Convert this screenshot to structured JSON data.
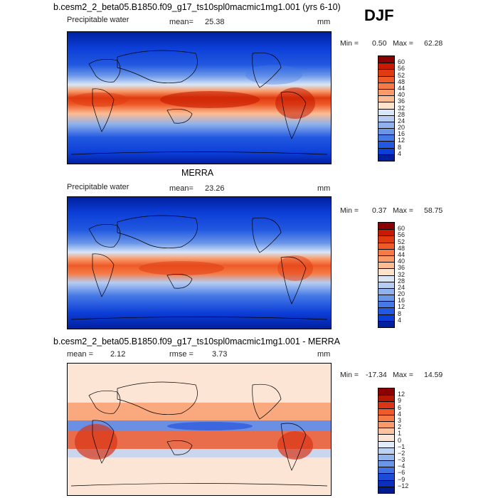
{
  "season": "DJF",
  "panels": [
    {
      "id": "model",
      "title": "b.cesm2_2_beta05.B1850.f09_g17_ts10spl0macmic1mg1.001 (yrs 6-10)",
      "variable": "Precipitable water",
      "mean_label": "mean=",
      "mean_value": "25.38",
      "rmse_label": "",
      "rmse_value": "",
      "units": "mm",
      "min_label": "Min =",
      "min_value": "0.50",
      "max_label": "Max =",
      "max_value": "62.28",
      "colorbar": {
        "labels": [
          "60",
          "56",
          "52",
          "48",
          "44",
          "40",
          "36",
          "32",
          "28",
          "24",
          "20",
          "16",
          "12",
          "8",
          "4"
        ],
        "colors": [
          "#8b0000",
          "#c71a00",
          "#e03a10",
          "#ee5a28",
          "#f57a45",
          "#f99a68",
          "#fcbc92",
          "#fde3cc",
          "#d9e6f7",
          "#b5cdf2",
          "#8fb2ec",
          "#6a96e8",
          "#4679e6",
          "#2259e0",
          "#0c3ed8",
          "#001f9f"
        ]
      }
    },
    {
      "id": "obs",
      "title": "MERRA",
      "variable": "Precipitable water",
      "mean_label": "mean=",
      "mean_value": "23.26",
      "rmse_label": "",
      "rmse_value": "",
      "units": "mm",
      "min_label": "Min =",
      "min_value": "0.37",
      "max_label": "Max =",
      "max_value": "58.75",
      "colorbar": {
        "labels": [
          "60",
          "56",
          "52",
          "48",
          "44",
          "40",
          "36",
          "32",
          "28",
          "24",
          "20",
          "16",
          "12",
          "8",
          "4"
        ],
        "colors": [
          "#8b0000",
          "#c71a00",
          "#e03a10",
          "#ee5a28",
          "#f57a45",
          "#f99a68",
          "#fcbc92",
          "#fde3cc",
          "#d9e6f7",
          "#b5cdf2",
          "#8fb2ec",
          "#6a96e8",
          "#4679e6",
          "#2259e0",
          "#0c3ed8",
          "#001f9f"
        ]
      }
    },
    {
      "id": "diff",
      "title": "b.cesm2_2_beta05.B1850.f09_g17_ts10spl0macmic1mg1.001 - MERRA",
      "variable": "",
      "mean_label": "mean =",
      "mean_value": "2.12",
      "rmse_label": "rmse =",
      "rmse_value": "3.73",
      "units": "mm",
      "min_label": "Min =",
      "min_value": "-17.34",
      "max_label": "Max =",
      "max_value": "14.59",
      "colorbar": {
        "labels": [
          "12",
          "9",
          "6",
          "4",
          "3",
          "2",
          "1",
          "0",
          "−1",
          "−2",
          "−3",
          "−4",
          "−6",
          "−9",
          "−12"
        ],
        "colors": [
          "#8b0000",
          "#b51800",
          "#d93516",
          "#ee5a28",
          "#f57a45",
          "#f99a68",
          "#fcc3a0",
          "#fde5d6",
          "#e2ecf8",
          "#bcd2f2",
          "#92b4ec",
          "#6a96e8",
          "#3f6fe0",
          "#1c4bd8",
          "#0a2fbf",
          "#001a8f"
        ]
      }
    }
  ]
}
